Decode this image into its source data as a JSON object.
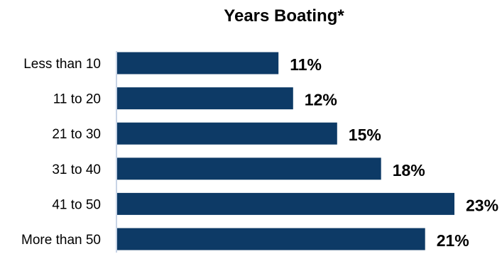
{
  "chart_data": {
    "type": "bar",
    "orientation": "horizontal",
    "title": "Years Boating*",
    "categories": [
      "Less than 10",
      "11 to 20",
      "21 to 30",
      "31 to 40",
      "41 to 50",
      "More than 50"
    ],
    "values": [
      11,
      12,
      15,
      18,
      23,
      21
    ],
    "value_labels": [
      "11%",
      "12%",
      "15%",
      "18%",
      "23%",
      "21%"
    ],
    "unit": "%",
    "xlim": [
      0,
      23
    ],
    "grid": false,
    "legend": "none",
    "bar_color": "#0d3a66",
    "axis_color": "#c8d4e6"
  }
}
